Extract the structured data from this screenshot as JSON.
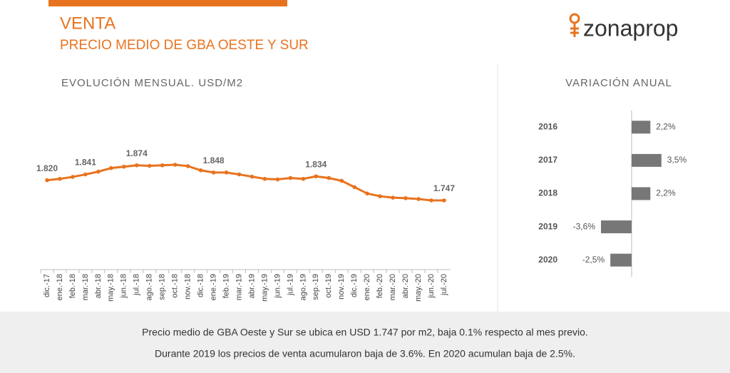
{
  "header": {
    "title": "VENTA",
    "subtitle": "PRECIO MEDIO DE GBA OESTE Y SUR",
    "logo": "zonaprop"
  },
  "chart_data": [
    {
      "type": "line",
      "title": "EVOLUCIÓN MENSUAL. USD/M2",
      "color": "#e8731f",
      "categories": [
        "dic.-17",
        "ene.-18",
        "feb.-18",
        "mar.-18",
        "abr.-18",
        "may.-18",
        "jun.-18",
        "jul.-18",
        "ago.-18",
        "sep.-18",
        "oct.-18",
        "nov.-18",
        "dic.-18",
        "ene.-19",
        "feb.-19",
        "mar.-19",
        "abr.-19",
        "may.-19",
        "jun.-19",
        "jul.-19",
        "ago.-19",
        "sep.-19",
        "oct.-19",
        "nov.-19",
        "dic.-19",
        "ene.-20",
        "feb.-20",
        "mar.-20",
        "abr.-20",
        "may.-20",
        "jun.-20",
        "jul.-20"
      ],
      "values": [
        1820,
        1825,
        1832,
        1841,
        1851,
        1864,
        1869,
        1874,
        1872,
        1874,
        1876,
        1871,
        1856,
        1848,
        1848,
        1841,
        1833,
        1825,
        1823,
        1828,
        1825,
        1834,
        1828,
        1818,
        1795,
        1772,
        1762,
        1757,
        1755,
        1752,
        1747,
        1747
      ],
      "value_labels": [
        "1.820",
        null,
        null,
        "1.841",
        null,
        null,
        null,
        "1.874",
        null,
        null,
        null,
        null,
        null,
        "1.848",
        null,
        null,
        null,
        null,
        null,
        null,
        null,
        "1.834",
        null,
        null,
        null,
        null,
        null,
        null,
        null,
        null,
        null,
        "1.747"
      ]
    },
    {
      "type": "hbar",
      "title": "VARIACIÓN ANUAL",
      "color": "#777777",
      "categories": [
        "2016",
        "2017",
        "2018",
        "2019",
        "2020"
      ],
      "values": [
        2.2,
        3.5,
        2.2,
        -3.6,
        -2.5
      ],
      "value_labels": [
        "2,2%",
        "3,5%",
        "2,2%",
        "-3,6%",
        "-2,5%"
      ]
    }
  ],
  "footer": [
    "Precio medio de GBA Oeste y Sur se ubica en USD 1.747 por m2, baja 0.1% respecto al mes previo.",
    "Durante 2019 los precios de venta acumularon baja de 3.6%. En 2020 acumulan baja de 2.5%."
  ]
}
